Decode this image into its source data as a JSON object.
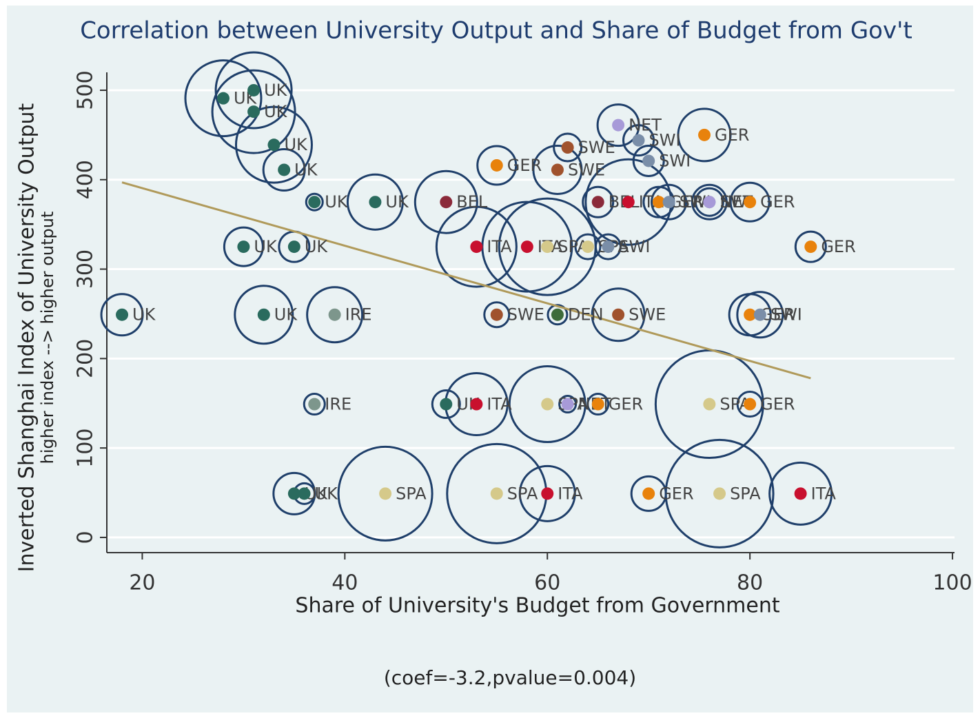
{
  "chart_data": {
    "type": "scatter",
    "title": "Correlation between University Output and Share of Budget from Gov't",
    "x_label": "Share of University's Budget from Government",
    "y_label": "Inverted Shanghai Index of University Output",
    "y_sublabel": "higher index --> higher output",
    "note": "(coef=-3.2,pvalue=0.004)",
    "xlim": [
      16.5,
      100.2
    ],
    "ylim": [
      -17,
      520
    ],
    "xticks": [
      20,
      40,
      60,
      80,
      100
    ],
    "yticks": [
      0,
      100,
      200,
      300,
      400,
      500
    ],
    "grid": true,
    "x": [
      28,
      31,
      31,
      33,
      34,
      37,
      43,
      30,
      35,
      18,
      32,
      39,
      37,
      35,
      36,
      44,
      50,
      53,
      55,
      60,
      60,
      62,
      65,
      76,
      80,
      70,
      77,
      85,
      55,
      61,
      67,
      80,
      81,
      50,
      53,
      58,
      60,
      64,
      66,
      86,
      65,
      68,
      71,
      72,
      76,
      76,
      80,
      62,
      61,
      55,
      67,
      69,
      70,
      75.5
    ],
    "values": [
      491,
      500,
      476,
      439,
      411,
      375,
      375,
      325,
      325,
      249,
      249,
      249,
      149,
      49,
      49,
      49,
      149,
      149,
      49,
      49,
      149,
      149,
      149,
      149,
      149,
      49,
      49,
      49,
      249,
      249,
      249,
      249,
      249,
      375,
      325,
      325,
      325,
      325,
      325,
      325,
      375,
      375,
      375,
      375,
      375,
      375,
      375,
      436,
      411,
      416,
      461,
      444,
      421,
      450
    ],
    "sizes": [
      55,
      55,
      60,
      55,
      30,
      12,
      40,
      28,
      22,
      30,
      42,
      40,
      15,
      30,
      15,
      68,
      20,
      45,
      72,
      40,
      55,
      12,
      15,
      78,
      18,
      25,
      78,
      45,
      18,
      14,
      38,
      30,
      33,
      45,
      58,
      65,
      70,
      18,
      18,
      22,
      22,
      62,
      22,
      25,
      25,
      20,
      28,
      20,
      35,
      28,
      30,
      22,
      22,
      38
    ],
    "point_labels": [
      "UK",
      "UK",
      "UK",
      "UK",
      "UK",
      "UK",
      "UK",
      "UK",
      "UK",
      "UK",
      "UK",
      "IRE",
      "IRE",
      "UK",
      "UK",
      "SPA",
      "UK",
      "ITA",
      "SPA",
      "ITA",
      "SPA",
      "NET",
      "GER",
      "SPA",
      "GER",
      "GER",
      "SPA",
      "ITA",
      "SWE",
      "DEN",
      "SWE",
      "GER",
      "SWI",
      "BEL",
      "ITA",
      "ITA",
      "SPA",
      "SPA",
      "SWI",
      "GER",
      "BEL",
      "ITA",
      "GER",
      "SWI",
      "SWI",
      "NET",
      "GER",
      "SWE",
      "SWE",
      "GER",
      "NET",
      "SWI",
      "SWI",
      "GER"
    ],
    "label_colors": {
      "UK": "#2a6b5e",
      "IRE": "#7d968c",
      "SPA": "#d5c98a",
      "ITA": "#c8102e",
      "GER": "#e8820c",
      "SWE": "#a0522d",
      "SWI": "#7a8ea8",
      "NET": "#a79ad8",
      "BEL": "#8b2a3a",
      "DEN": "#3d6b3a"
    },
    "bubble_color": "#1f3f6a",
    "fit_line": {
      "x": [
        18,
        86
      ],
      "y": [
        397,
        178
      ],
      "color": "#b09a5a"
    }
  }
}
